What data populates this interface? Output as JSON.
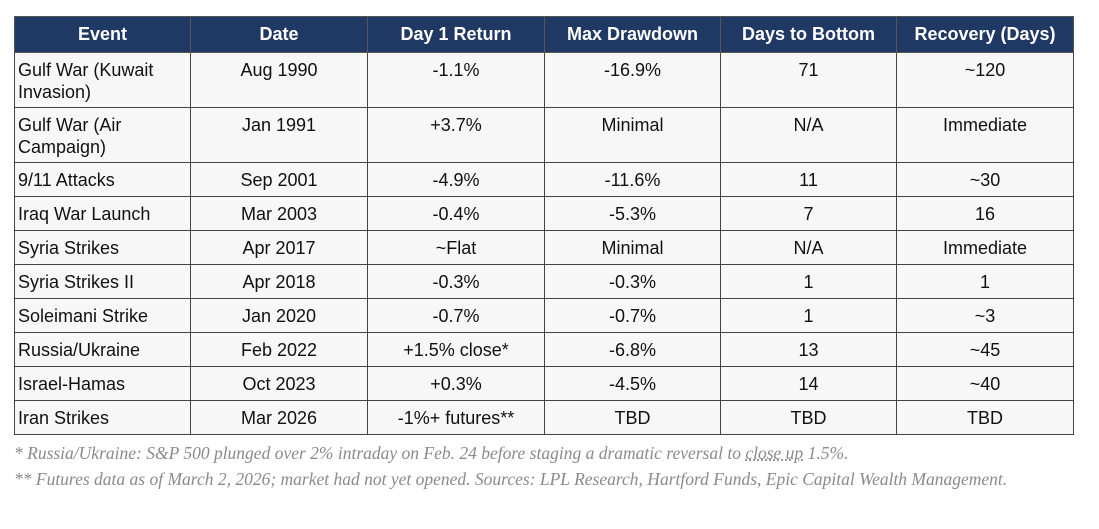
{
  "table": {
    "header": [
      "Event",
      "Date",
      "Day 1 Return",
      "Max Drawdown",
      "Days to Bottom",
      "Recovery (Days)"
    ],
    "rows": [
      [
        "Gulf War (Kuwait Invasion)",
        "Aug 1990",
        "-1.1%",
        "-16.9%",
        "71",
        "~120"
      ],
      [
        "Gulf War (Air Campaign)",
        "Jan 1991",
        "+3.7%",
        "Minimal",
        "N/A",
        "Immediate"
      ],
      [
        "9/11 Attacks",
        "Sep 2001",
        "-4.9%",
        "-11.6%",
        "11",
        "~30"
      ],
      [
        "Iraq War Launch",
        "Mar 2003",
        "-0.4%",
        "-5.3%",
        "7",
        "16"
      ],
      [
        "Syria Strikes",
        "Apr 2017",
        "~Flat",
        "Minimal",
        "N/A",
        "Immediate"
      ],
      [
        "Syria Strikes II",
        "Apr 2018",
        "-0.3%",
        "-0.3%",
        "1",
        "1"
      ],
      [
        "Soleimani Strike",
        "Jan 2020",
        "-0.7%",
        "-0.7%",
        "1",
        "~3"
      ],
      [
        "Russia/Ukraine",
        "Feb 2022",
        "+1.5% close*",
        "-6.8%",
        "13",
        "~45"
      ],
      [
        "Israel-Hamas",
        "Oct 2023",
        "+0.3%",
        "-4.5%",
        "14",
        "~40"
      ],
      [
        "Iran Strikes",
        "Mar 2026",
        "-1%+ futures**",
        "TBD",
        "TBD",
        "TBD"
      ]
    ]
  },
  "footnotes": [
    [
      "* Russia/Ukraine: S&P 500 plunged over 2% intraday on Feb. 24 before staging a dramatic reversal to ",
      "close up",
      " 1.5%."
    ],
    [
      "** Futures data as of March 2, 2026; market had not yet opened. Sources: LPL Research, Hartford Funds, Epic Capital Wealth Management."
    ]
  ]
}
